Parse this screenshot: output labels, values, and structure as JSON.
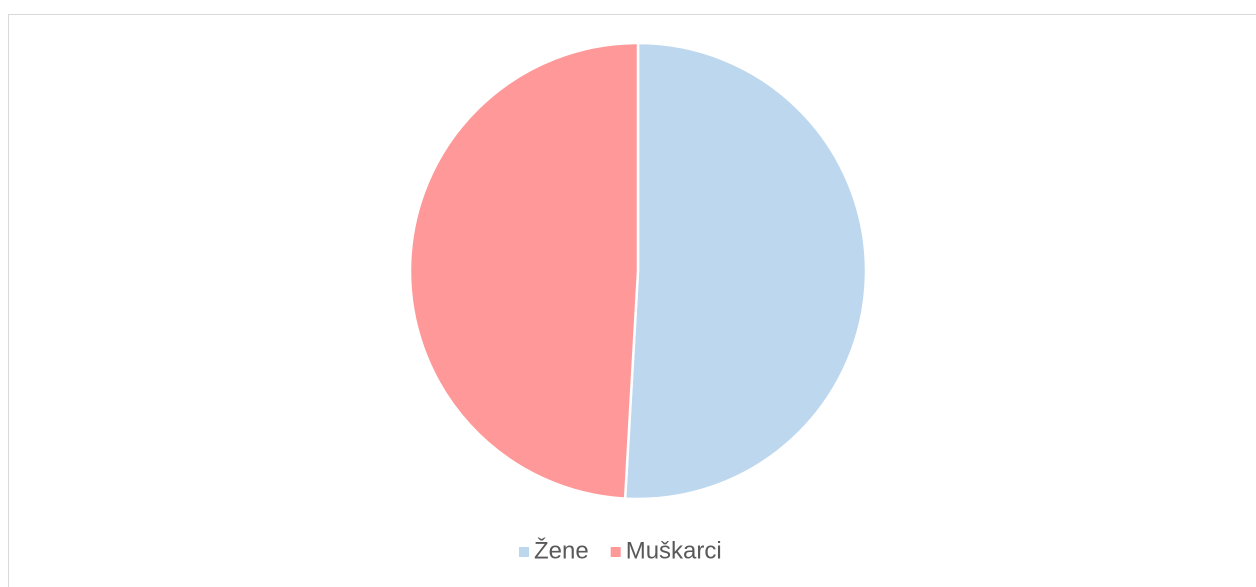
{
  "chart_data": {
    "type": "pie",
    "categories": [
      "Žene",
      "Muškarci"
    ],
    "values": [
      50.9,
      49.1
    ],
    "colors": [
      "#bdd7ee",
      "#ff9999"
    ],
    "legend": "bottom"
  }
}
